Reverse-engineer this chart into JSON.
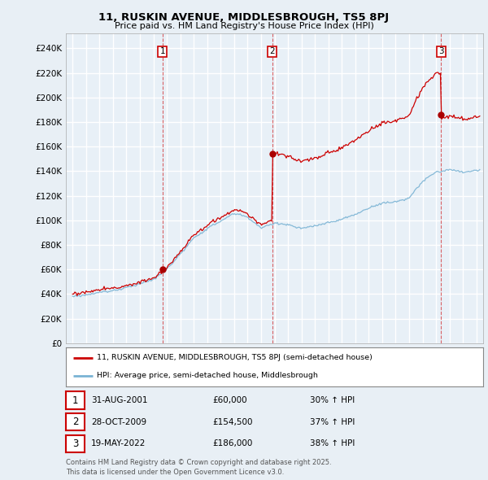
{
  "title_line1": "11, RUSKIN AVENUE, MIDDLESBROUGH, TS5 8PJ",
  "title_line2": "Price paid vs. HM Land Registry's House Price Index (HPI)",
  "ylabel_ticks": [
    "£0",
    "£20K",
    "£40K",
    "£60K",
    "£80K",
    "£100K",
    "£120K",
    "£140K",
    "£160K",
    "£180K",
    "£200K",
    "£220K",
    "£240K"
  ],
  "ytick_values": [
    0,
    20000,
    40000,
    60000,
    80000,
    100000,
    120000,
    140000,
    160000,
    180000,
    200000,
    220000,
    240000
  ],
  "ylim": [
    0,
    252000
  ],
  "xlim_start": 1994.5,
  "xlim_end": 2025.5,
  "background_color": "#e8eff5",
  "plot_bg_color": "#e8f0f7",
  "grid_color": "#ffffff",
  "line_color_hpi": "#7ab3d4",
  "line_color_price": "#cc0000",
  "sale_marker_color": "#aa0000",
  "sale_dates_num": [
    2001.67,
    2009.83,
    2022.38
  ],
  "sale_prices": [
    60000,
    154500,
    186000
  ],
  "sale_labels": [
    "1",
    "2",
    "3"
  ],
  "legend_label_price": "11, RUSKIN AVENUE, MIDDLESBROUGH, TS5 8PJ (semi-detached house)",
  "legend_label_hpi": "HPI: Average price, semi-detached house, Middlesbrough",
  "table_data": [
    {
      "num": "1",
      "date": "31-AUG-2001",
      "price": "£60,000",
      "change": "30% ↑ HPI"
    },
    {
      "num": "2",
      "date": "28-OCT-2009",
      "price": "£154,500",
      "change": "37% ↑ HPI"
    },
    {
      "num": "3",
      "date": "19-MAY-2022",
      "price": "£186,000",
      "change": "38% ↑ HPI"
    }
  ],
  "footnote": "Contains HM Land Registry data © Crown copyright and database right 2025.\nThis data is licensed under the Open Government Licence v3.0.",
  "dashed_line_color": "#cc0000",
  "dashed_line_alpha": 0.6,
  "hpi_anchor_years": [
    1995,
    1996,
    1997,
    1998,
    1999,
    2000,
    2001,
    2002,
    2003,
    2004,
    2005,
    2006,
    2007,
    2008,
    2009,
    2010,
    2011,
    2012,
    2013,
    2014,
    2015,
    2016,
    2017,
    2018,
    2019,
    2020,
    2021,
    2022,
    2023,
    2024,
    2025
  ],
  "hpi_anchor_values": [
    38000,
    39500,
    41000,
    43000,
    45500,
    48000,
    51000,
    60000,
    72000,
    85000,
    93000,
    99000,
    105000,
    102000,
    93000,
    97000,
    96000,
    93000,
    95000,
    98000,
    101000,
    105000,
    110000,
    114000,
    116000,
    119000,
    132000,
    140000,
    142000,
    140000,
    142000
  ]
}
